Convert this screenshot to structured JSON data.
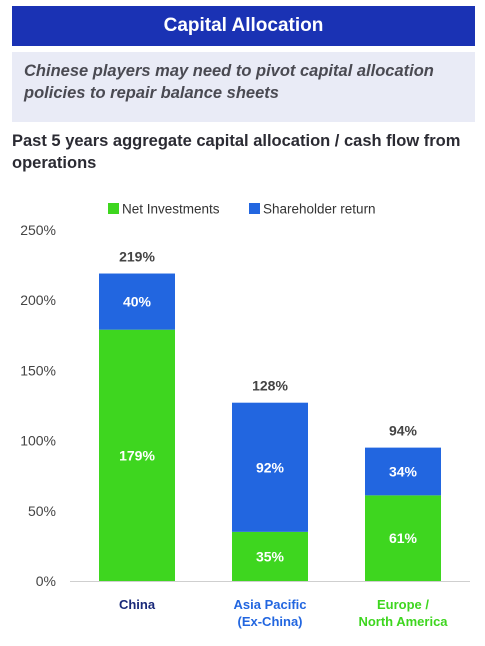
{
  "header": {
    "title": "Capital Allocation"
  },
  "subtitle": "Chinese players may need to pivot capital allocation policies to repair balance sheets",
  "colors": {
    "net_investments": "#3ed61f",
    "shareholder_return": "#2266e0",
    "header_bg": "#1a32b4"
  },
  "chart_data": {
    "type": "bar",
    "stacked": true,
    "title": "Past 5 years aggregate capital allocation / cash flow from operations",
    "categories": [
      "China",
      "Asia Pacific (Ex-China)",
      "Europe / North America"
    ],
    "category_lines": [
      [
        "China"
      ],
      [
        "Asia Pacific",
        "(Ex-China)"
      ],
      [
        "Europe /",
        "North America"
      ]
    ],
    "category_colors": [
      "#1a2a7a",
      "#2266e0",
      "#3ed61f"
    ],
    "series": [
      {
        "name": "Net Investments",
        "values": [
          179,
          35,
          61
        ],
        "labels": [
          "179%",
          "35%",
          "61%"
        ],
        "color": "#3ed61f"
      },
      {
        "name": "Shareholder return",
        "values": [
          40,
          92,
          34
        ],
        "labels": [
          "40%",
          "92%",
          "34%"
        ],
        "color": "#2266e0"
      }
    ],
    "totals": [
      219,
      128,
      94
    ],
    "total_labels": [
      "219%",
      "128%",
      "94%"
    ],
    "y_ticks": [
      0,
      50,
      100,
      150,
      200,
      250
    ],
    "y_tick_labels": [
      "0%",
      "50%",
      "100%",
      "150%",
      "200%",
      "250%"
    ],
    "ylim": [
      0,
      250
    ],
    "grid": false,
    "legend": "top-center"
  }
}
